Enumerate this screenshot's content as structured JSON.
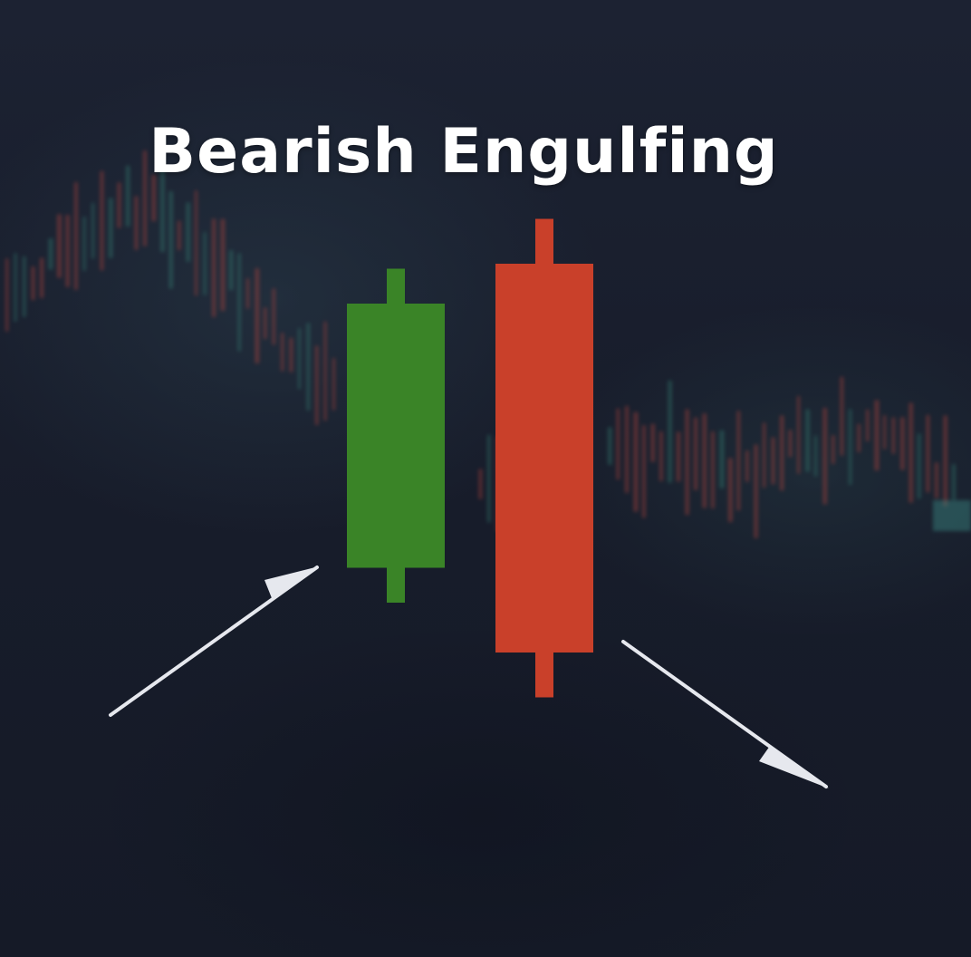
{
  "title": "Bearish Engulfing",
  "colors": {
    "bullish": "#3a8427",
    "bearish": "#c9402a",
    "arrow": "#e6e8ee",
    "background": "#181d2b"
  },
  "candles": [
    {
      "name": "bullish-candle",
      "direction": "bullish",
      "open": 3.45,
      "close": 6.1,
      "high": 6.45,
      "low": 3.1
    },
    {
      "name": "bearish-candle",
      "direction": "bearish",
      "open": 6.5,
      "close": 2.6,
      "high": 6.95,
      "low": 2.15
    }
  ],
  "arrows": [
    {
      "name": "uptrend-arrow",
      "trend": "up"
    },
    {
      "name": "downtrend-arrow",
      "trend": "down"
    }
  ]
}
